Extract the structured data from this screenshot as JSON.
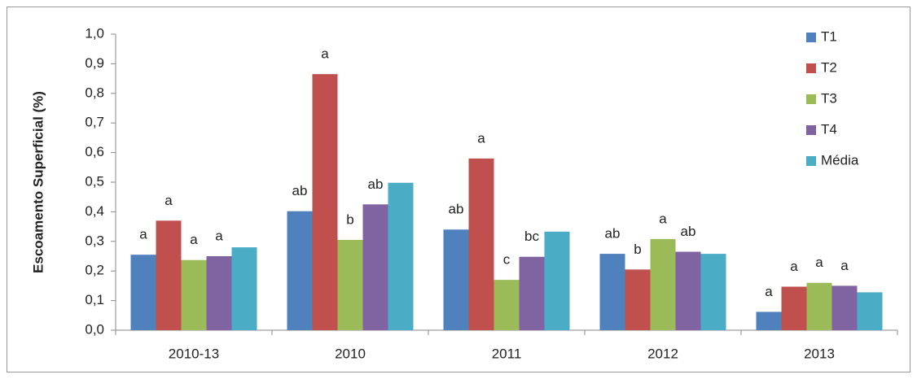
{
  "chart_data": {
    "type": "bar",
    "y_label": "Escoamento Superficial (%)",
    "categories": [
      "2010-13",
      "2010",
      "2011",
      "2012",
      "2013"
    ],
    "series": [
      {
        "name": "T1",
        "color": "#4f81bd",
        "values": [
          0.255,
          0.402,
          0.34,
          0.258,
          0.062
        ],
        "annotations": [
          "a",
          "ab",
          "ab",
          "ab",
          "a"
        ]
      },
      {
        "name": "T2",
        "color": "#c0504d",
        "values": [
          0.37,
          0.865,
          0.58,
          0.205,
          0.147
        ],
        "annotations": [
          "a",
          "a",
          "a",
          "b",
          "a"
        ]
      },
      {
        "name": "T3",
        "color": "#9bbb59",
        "values": [
          0.237,
          0.305,
          0.17,
          0.308,
          0.16
        ],
        "annotations": [
          "a",
          "b",
          "c",
          "a",
          "a"
        ]
      },
      {
        "name": "T4",
        "color": "#8064a2",
        "values": [
          0.25,
          0.425,
          0.248,
          0.265,
          0.15
        ],
        "annotations": [
          "a",
          "ab",
          "bc",
          "ab",
          "a"
        ]
      },
      {
        "name": "Média",
        "color": "#4bacc6",
        "values": [
          0.28,
          0.498,
          0.333,
          0.258,
          0.128
        ]
      }
    ],
    "ylim": [
      0,
      1
    ],
    "yticks": [
      {
        "value": 0,
        "label": "0,0"
      },
      {
        "value": 0.1,
        "label": "0,1"
      },
      {
        "value": 0.2,
        "label": "0,2"
      },
      {
        "value": 0.3,
        "label": "0,3"
      },
      {
        "value": 0.4,
        "label": "0,4"
      },
      {
        "value": 0.5,
        "label": "0,5"
      },
      {
        "value": 0.6,
        "label": "0,6"
      },
      {
        "value": 0.7,
        "label": "0,7"
      },
      {
        "value": 0.8,
        "label": "0,8"
      },
      {
        "value": 0.9,
        "label": "0,9"
      },
      {
        "value": 1,
        "label": "1,0"
      }
    ],
    "grid": false,
    "legend": "right"
  }
}
